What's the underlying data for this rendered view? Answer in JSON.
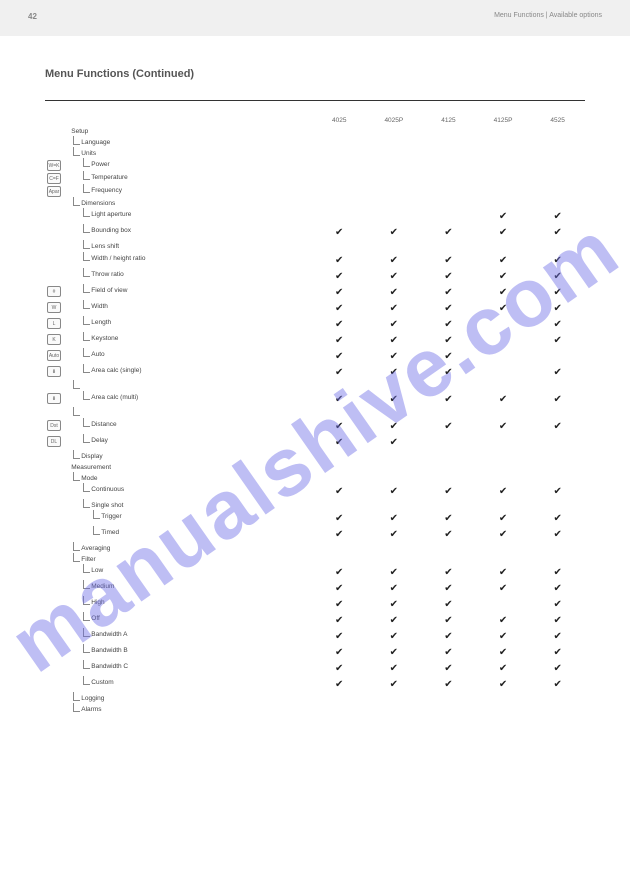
{
  "header": {
    "page_number": "42",
    "breadcrumb": "Menu Functions | Available options"
  },
  "title": "Menu Functions (Continued)",
  "columns": [
    "",
    "",
    "4025",
    "4025P",
    "4125",
    "4125P",
    "4525"
  ],
  "rows": [
    {
      "lvl": 1,
      "icon": "",
      "label": "Setup",
      "m": [
        "",
        "",
        "",
        "",
        ""
      ]
    },
    {
      "lvl": 2,
      "icon": "",
      "label": "Language",
      "m": [
        "",
        "",
        "",
        "",
        ""
      ]
    },
    {
      "lvl": 2,
      "icon": "",
      "label": "Units",
      "m": [
        "",
        "",
        "",
        "",
        ""
      ]
    },
    {
      "lvl": 3,
      "icon": "W=K",
      "label": "Power",
      "m": [
        "",
        "",
        "",
        "",
        ""
      ]
    },
    {
      "lvl": 3,
      "icon": "C=F",
      "label": "Temperature",
      "m": [
        "",
        "",
        "",
        "",
        ""
      ]
    },
    {
      "lvl": 3,
      "icon": "Apar",
      "label": "Frequency",
      "m": [
        "",
        "",
        "",
        "",
        ""
      ]
    },
    {
      "lvl": 2,
      "icon": "",
      "label": "Dimensions",
      "m": [
        "",
        "",
        "",
        "",
        ""
      ]
    },
    {
      "lvl": 3,
      "icon": "",
      "label": "Light aperture",
      "m": [
        "",
        "",
        "",
        "✔",
        "✔"
      ]
    },
    {
      "lvl": 3,
      "icon": "",
      "label": "Bounding box",
      "m": [
        "✔",
        "✔",
        "✔",
        "✔",
        "✔"
      ]
    },
    {
      "lvl": 3,
      "icon": "",
      "label": "Lens shift",
      "m": [
        "",
        "",
        "",
        "",
        ""
      ]
    },
    {
      "lvl": 3,
      "icon": "",
      "label": "Width / height ratio",
      "m": [
        "✔",
        "✔",
        "✔",
        "✔",
        "✔"
      ]
    },
    {
      "lvl": 3,
      "icon": "",
      "label": "Throw ratio",
      "m": [
        "✔",
        "✔",
        "✔",
        "✔",
        "✔"
      ]
    },
    {
      "lvl": 3,
      "icon": "#",
      "label": "Field of view",
      "m": [
        "✔",
        "✔",
        "✔",
        "✔",
        "✔"
      ]
    },
    {
      "lvl": 3,
      "icon": "W",
      "label": "Width",
      "m": [
        "✔",
        "✔",
        "✔",
        "✔",
        "✔"
      ]
    },
    {
      "lvl": 3,
      "icon": "L",
      "label": "Length",
      "m": [
        "✔",
        "✔",
        "✔",
        "",
        "✔"
      ]
    },
    {
      "lvl": 3,
      "icon": "K",
      "label": "Keystone",
      "m": [
        "✔",
        "✔",
        "✔",
        "",
        "✔"
      ]
    },
    {
      "lvl": 3,
      "icon": "Auto",
      "label": "Auto",
      "m": [
        "✔",
        "✔",
        "✔",
        "",
        ""
      ]
    },
    {
      "lvl": 3,
      "icon": "⬇",
      "label": "Area calc (single)",
      "m": [
        "✔",
        "✔",
        "✔",
        "",
        "✔"
      ]
    },
    {
      "lvl": 2,
      "icon": "",
      "label": "",
      "m": [
        "",
        "",
        "",
        "",
        ""
      ]
    },
    {
      "lvl": 3,
      "icon": "⬇",
      "label": "Area calc (multi)",
      "m": [
        "✔",
        "✔",
        "✔",
        "✔",
        "✔"
      ]
    },
    {
      "lvl": 2,
      "icon": "",
      "label": "",
      "m": [
        "",
        "",
        "",
        "",
        ""
      ]
    },
    {
      "lvl": 3,
      "icon": "Dst",
      "label": "Distance",
      "m": [
        "✔",
        "✔",
        "✔",
        "✔",
        "✔"
      ]
    },
    {
      "lvl": 3,
      "icon": "DL",
      "label": "Delay",
      "m": [
        "✔",
        "✔",
        "",
        "",
        ""
      ]
    },
    {
      "lvl": 2,
      "icon": "",
      "label": "Display",
      "m": [
        "",
        "",
        "",
        "",
        ""
      ]
    },
    {
      "lvl": 1,
      "icon": "",
      "label": "Measurement",
      "m": [
        "",
        "",
        "",
        "",
        ""
      ]
    },
    {
      "lvl": 2,
      "icon": "",
      "label": "Mode",
      "m": [
        "",
        "",
        "",
        "",
        ""
      ]
    },
    {
      "lvl": 3,
      "icon": "",
      "label": "Continuous",
      "m": [
        "✔",
        "✔",
        "✔",
        "✔",
        "✔"
      ]
    },
    {
      "lvl": 3,
      "icon": "",
      "label": "Single shot",
      "m": [
        "",
        "",
        "",
        "",
        ""
      ]
    },
    {
      "lvl": 4,
      "icon": "",
      "label": "Trigger",
      "m": [
        "✔",
        "✔",
        "✔",
        "✔",
        "✔"
      ]
    },
    {
      "lvl": 4,
      "icon": "",
      "label": "Timed",
      "m": [
        "✔",
        "✔",
        "✔",
        "✔",
        "✔"
      ]
    },
    {
      "lvl": 2,
      "icon": "",
      "label": "Averaging",
      "m": [
        "",
        "",
        "",
        "",
        ""
      ]
    },
    {
      "lvl": 2,
      "icon": "",
      "label": "Filter",
      "m": [
        "",
        "",
        "",
        "",
        ""
      ]
    },
    {
      "lvl": 3,
      "icon": "",
      "label": "Low",
      "m": [
        "✔",
        "✔",
        "✔",
        "✔",
        "✔"
      ]
    },
    {
      "lvl": 3,
      "icon": "",
      "label": "Medium",
      "m": [
        "✔",
        "✔",
        "✔",
        "✔",
        "✔"
      ]
    },
    {
      "lvl": 3,
      "icon": "",
      "label": "High",
      "m": [
        "✔",
        "✔",
        "✔",
        "",
        "✔"
      ]
    },
    {
      "lvl": 3,
      "icon": "",
      "label": "Off",
      "m": [
        "✔",
        "✔",
        "✔",
        "✔",
        "✔"
      ]
    },
    {
      "lvl": 3,
      "icon": "",
      "label": "Bandwidth A",
      "m": [
        "✔",
        "✔",
        "✔",
        "✔",
        "✔"
      ]
    },
    {
      "lvl": 3,
      "icon": "",
      "label": "Bandwidth B",
      "m": [
        "✔",
        "✔",
        "✔",
        "✔",
        "✔"
      ]
    },
    {
      "lvl": 3,
      "icon": "",
      "label": "Bandwidth C",
      "m": [
        "✔",
        "✔",
        "✔",
        "✔",
        "✔"
      ]
    },
    {
      "lvl": 3,
      "icon": "",
      "label": "Custom",
      "m": [
        "✔",
        "✔",
        "✔",
        "✔",
        "✔"
      ]
    },
    {
      "lvl": 2,
      "icon": "",
      "label": "Logging",
      "m": [
        "",
        "",
        "",
        "",
        ""
      ]
    },
    {
      "lvl": 2,
      "icon": "",
      "label": "Alarms",
      "m": [
        "",
        "",
        "",
        "",
        ""
      ]
    }
  ],
  "watermark": "manualshive.com"
}
